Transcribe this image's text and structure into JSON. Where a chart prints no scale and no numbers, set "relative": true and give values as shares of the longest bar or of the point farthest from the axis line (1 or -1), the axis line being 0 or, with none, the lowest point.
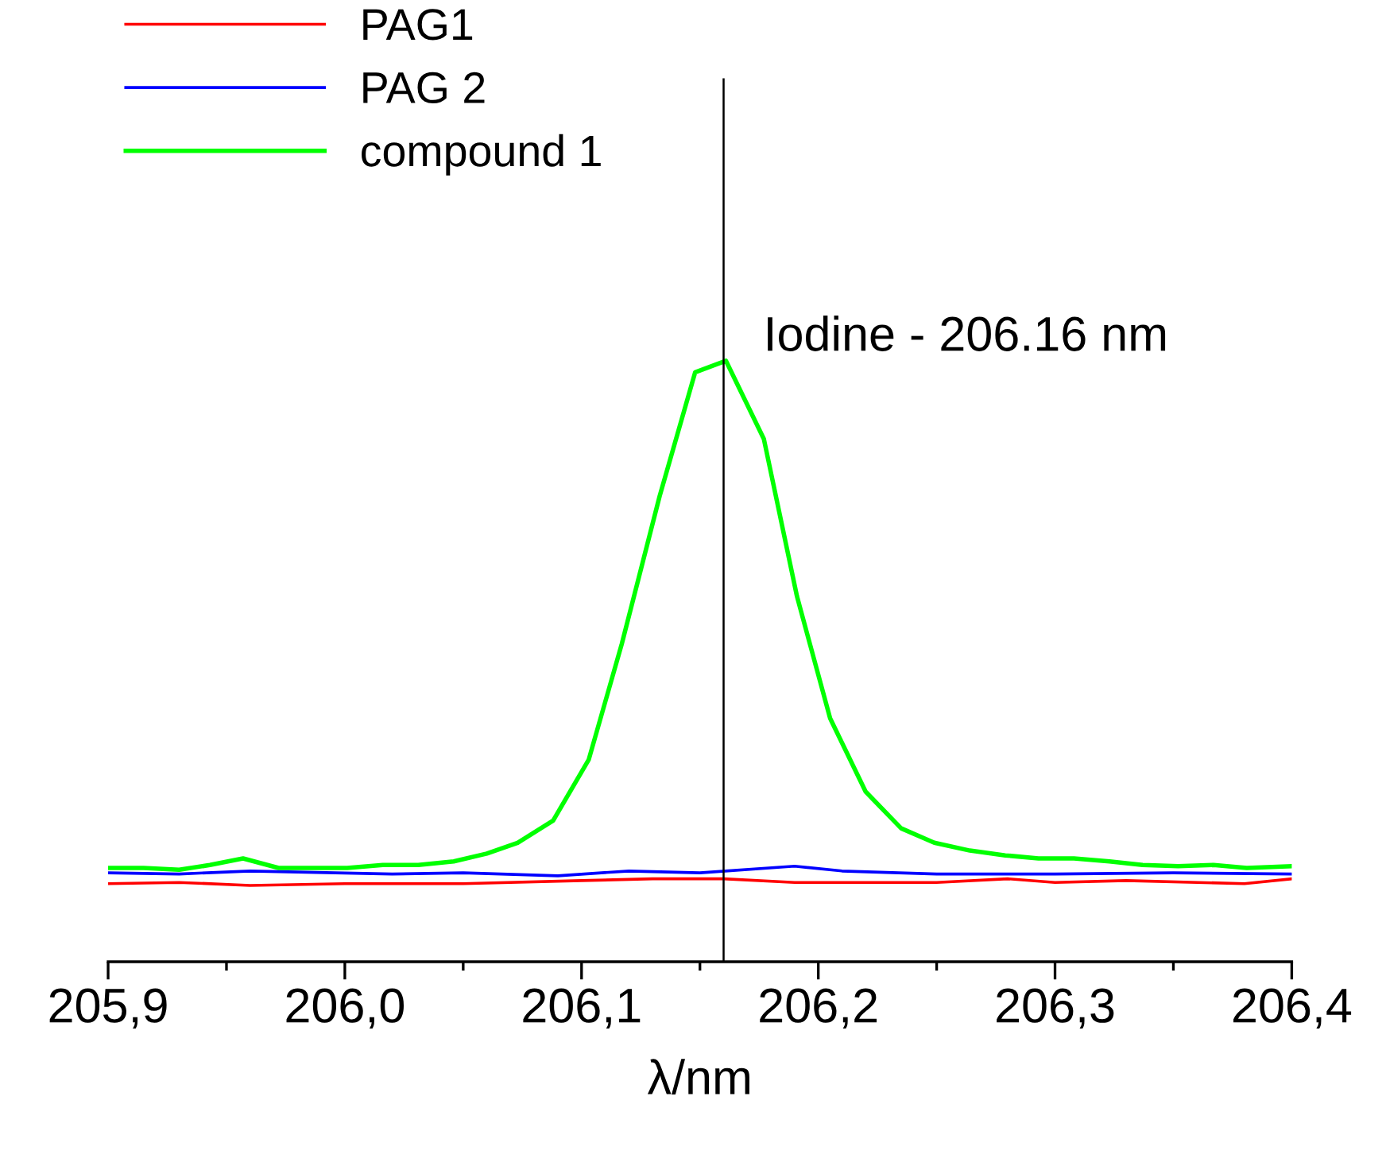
{
  "chart_data": {
    "type": "line",
    "relative": true,
    "xlabel": "λ/nm",
    "xlim": [
      205.9,
      206.4
    ],
    "xticks": [
      {
        "value": 205.9,
        "label": "205,9"
      },
      {
        "value": 206.0,
        "label": "206,0"
      },
      {
        "value": 206.1,
        "label": "206,1"
      },
      {
        "value": 206.2,
        "label": "206,2"
      },
      {
        "value": 206.3,
        "label": "206,3"
      },
      {
        "value": 206.4,
        "label": "206,4"
      }
    ],
    "legend": "top left",
    "grid": false,
    "marker": "none",
    "line_style": "solid",
    "ref_lines": [
      {
        "axis": "x",
        "value": 206.16,
        "label": "Iodine - 206.16 nm",
        "color": "#000000"
      }
    ],
    "series": [
      {
        "name": "PAG1",
        "color": "#ff0000",
        "x": [
          205.9,
          205.93,
          205.96,
          206.0,
          206.05,
          206.1,
          206.13,
          206.16,
          206.19,
          206.25,
          206.28,
          206.3,
          206.33,
          206.38,
          206.4
        ],
        "values": [
          0.13,
          0.132,
          0.127,
          0.13,
          0.13,
          0.135,
          0.138,
          0.138,
          0.132,
          0.132,
          0.138,
          0.132,
          0.135,
          0.13,
          0.138
        ]
      },
      {
        "name": "PAG 2",
        "color": "#0000ff",
        "x": [
          205.9,
          205.93,
          205.96,
          206.02,
          206.05,
          206.09,
          206.12,
          206.15,
          206.19,
          206.21,
          206.25,
          206.3,
          206.35,
          206.4
        ],
        "values": [
          0.148,
          0.146,
          0.151,
          0.146,
          0.148,
          0.143,
          0.151,
          0.148,
          0.159,
          0.151,
          0.146,
          0.146,
          0.148,
          0.146
        ]
      },
      {
        "name": "compound 1",
        "color": "#00ff00",
        "x": [
          205.9,
          205.915,
          205.93,
          205.943,
          205.957,
          205.972,
          205.987,
          206.001,
          206.016,
          206.031,
          206.046,
          206.06,
          206.073,
          206.088,
          206.103,
          206.117,
          206.133,
          206.148,
          206.161,
          206.177,
          206.191,
          206.205,
          206.22,
          206.235,
          206.249,
          206.264,
          206.279,
          206.293,
          206.308,
          206.323,
          206.337,
          206.352,
          206.367,
          206.381,
          206.4
        ],
        "values": [
          0.156,
          0.156,
          0.153,
          0.161,
          0.172,
          0.156,
          0.156,
          0.156,
          0.161,
          0.161,
          0.167,
          0.18,
          0.198,
          0.235,
          0.336,
          0.529,
          0.775,
          0.981,
          1.0,
          0.87,
          0.608,
          0.405,
          0.283,
          0.222,
          0.198,
          0.185,
          0.177,
          0.172,
          0.172,
          0.167,
          0.161,
          0.159,
          0.161,
          0.156,
          0.159
        ]
      }
    ]
  }
}
